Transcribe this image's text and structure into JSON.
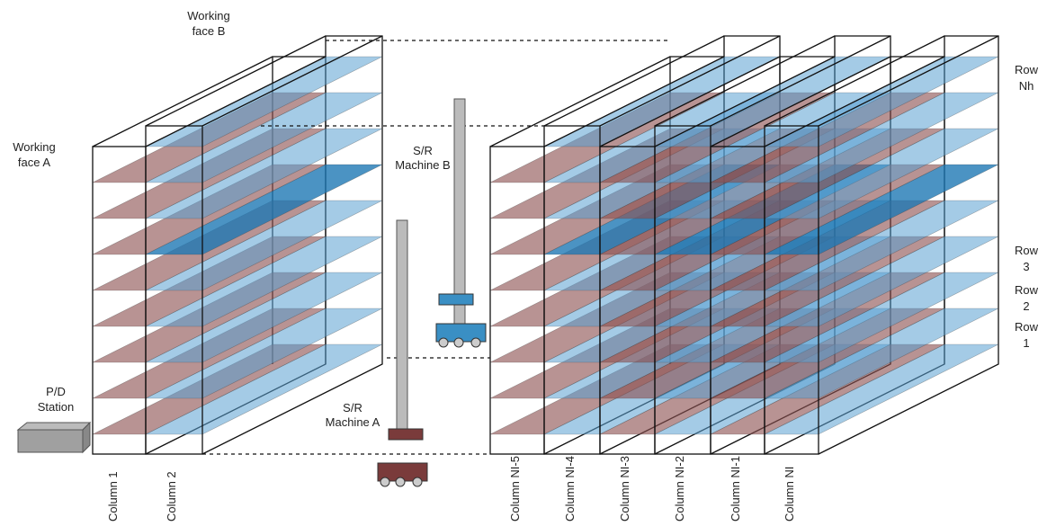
{
  "labels": {
    "working_face_b": {
      "lines": [
        "Working",
        "face B"
      ]
    },
    "working_face_a": {
      "lines": [
        "Working",
        "face A"
      ]
    },
    "sr_machine_b": {
      "lines": [
        "S/R",
        "Machine B"
      ]
    },
    "sr_machine_a": {
      "lines": [
        "S/R",
        "Machine A"
      ]
    },
    "pd_station": {
      "lines": [
        "P/D",
        "Station"
      ]
    }
  },
  "columns": [
    "Column 1",
    "Column 2",
    "Column NI-5",
    "Column NI-4",
    "Column NI-3",
    "Column NI-2",
    "Column NI-1",
    "Column NI"
  ],
  "rows": [
    {
      "lines": [
        "Row",
        "Nh"
      ]
    },
    {
      "lines": [
        "Row",
        "3"
      ]
    },
    {
      "lines": [
        "Row",
        "2"
      ]
    },
    {
      "lines": [
        "Row",
        "1"
      ]
    }
  ]
}
